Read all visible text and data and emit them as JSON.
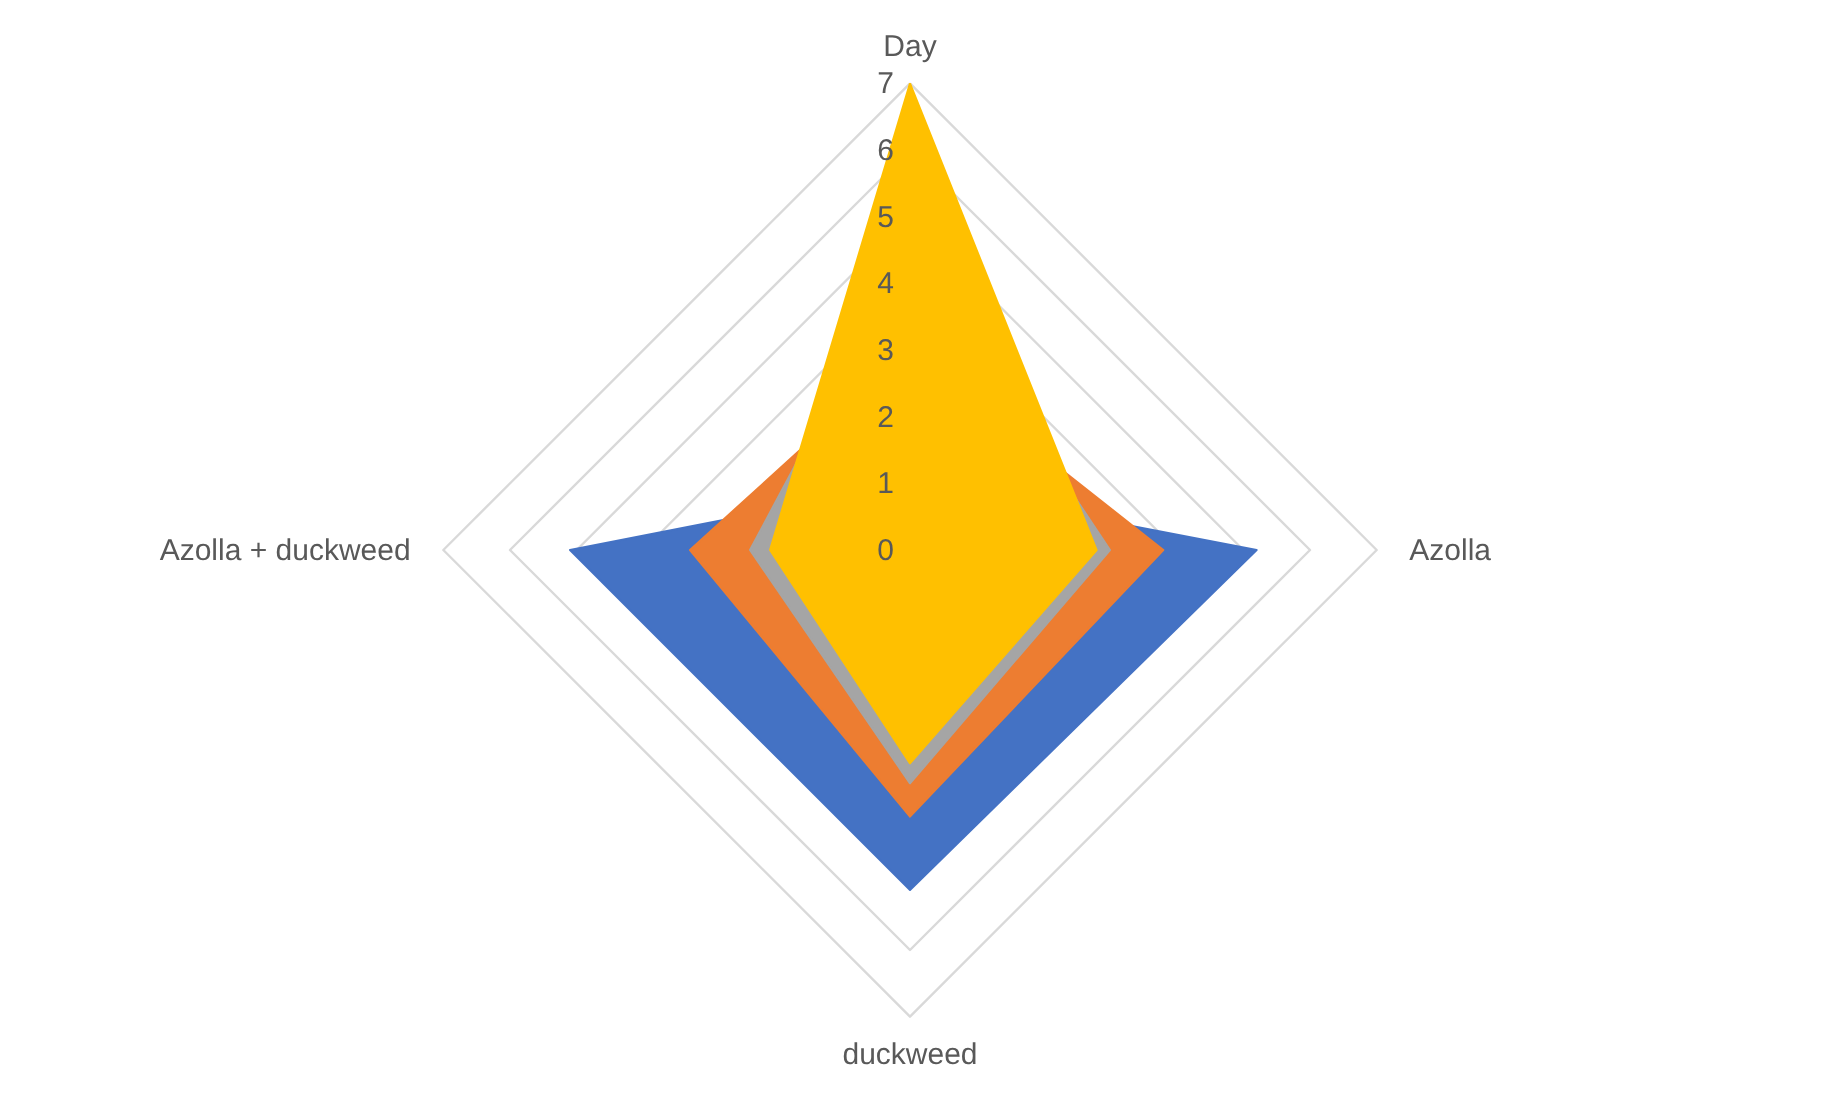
{
  "chart_data": {
    "type": "radar",
    "categories": [
      "Day",
      "Azolla",
      "duckweed",
      "Azolla + duckweed"
    ],
    "series": [
      {
        "color": "#4472c4",
        "values": [
          1,
          5.2,
          5.1,
          5.1
        ]
      },
      {
        "color": "#ed7d31",
        "values": [
          3,
          3.8,
          4.0,
          3.3
        ]
      },
      {
        "color": "#a5a5a5",
        "values": [
          4.5,
          3.0,
          3.5,
          2.4
        ]
      },
      {
        "color": "#ffc000",
        "values": [
          7,
          2.8,
          3.2,
          2.1
        ]
      }
    ],
    "ylim": [
      0,
      7
    ],
    "yticks": [
      0,
      1,
      2,
      3,
      4,
      5,
      6,
      7
    ],
    "grid": true
  }
}
